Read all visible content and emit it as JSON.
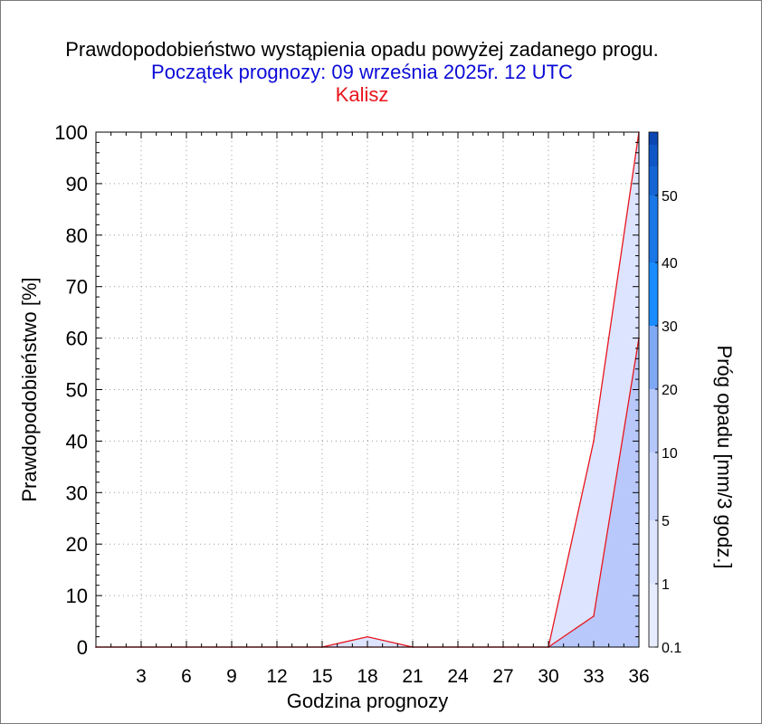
{
  "chart_data": {
    "type": "area",
    "title": "Prawdopodobieństwo wystąpienia opadu powyżej zadanego progu.",
    "subtitle": "Początek prognozy: 09 września 2025r. 12 UTC",
    "location": "Kalisz",
    "xlabel": "Godzina prognozy",
    "ylabel": "Prawdopodobieństwo [%]",
    "xlim": [
      0,
      36
    ],
    "ylim": [
      0,
      100
    ],
    "xticks": [
      3,
      6,
      9,
      12,
      15,
      18,
      21,
      24,
      27,
      30,
      33,
      36
    ],
    "yticks": [
      0,
      10,
      20,
      30,
      40,
      50,
      60,
      70,
      80,
      90,
      100
    ],
    "grid": true,
    "x": [
      0,
      3,
      6,
      9,
      12,
      15,
      18,
      21,
      24,
      27,
      30,
      33,
      36
    ],
    "series": [
      {
        "name": "0.1",
        "color": "#dde4ff",
        "values": [
          0,
          0,
          0,
          0,
          0,
          0,
          2,
          0,
          0,
          0,
          0,
          40,
          100
        ]
      },
      {
        "name": "1",
        "color": "#b9c8fb",
        "values": [
          0,
          0,
          0,
          0,
          0,
          0,
          0,
          0,
          0,
          0,
          0,
          6,
          60
        ]
      }
    ],
    "line_color": "#e8141c",
    "colorbar": {
      "label": "Próg opadu [mm/3 godz.]",
      "labels": [
        "0.1",
        "1",
        "5",
        "10",
        "20",
        "30",
        "40",
        "50"
      ],
      "colors": [
        "#e7ecff",
        "#dde4ff",
        "#c9d5fc",
        "#b4c6fa",
        "#7fa8f5",
        "#1a8cff",
        "#1b76e6",
        "#1565d4",
        "#0f57c6",
        "#0b46b3"
      ]
    }
  }
}
